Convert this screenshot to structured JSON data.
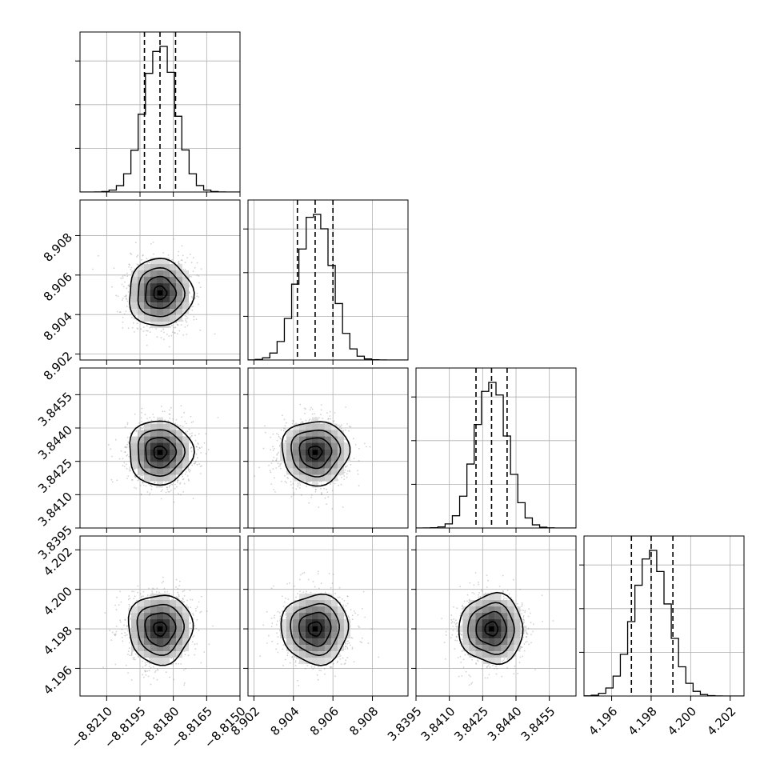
{
  "chart_data": {
    "type": "corner",
    "parameters": 4,
    "grid": true,
    "axes": [
      {
        "range": [
          -8.8222,
          -8.815
        ],
        "ticks": [
          -8.821,
          -8.8195,
          -8.818,
          -8.8165,
          -8.815
        ],
        "tick_labels": [
          "−8.8210",
          "−8.8195",
          "−8.8180",
          "−8.8165",
          "−8.8150"
        ],
        "quantiles": [
          -8.8193,
          -8.8186,
          -8.8179
        ],
        "median": -8.8186,
        "sigma": 0.00072
      },
      {
        "range": [
          8.9017,
          8.9098
        ],
        "ticks": [
          8.902,
          8.904,
          8.906,
          8.908
        ],
        "tick_labels": [
          "8.902",
          "8.904",
          "8.906",
          "8.908"
        ],
        "quantiles": [
          8.9042,
          8.9051,
          8.906
        ],
        "median": 8.9051,
        "sigma": 0.00085
      },
      {
        "range": [
          3.8395,
          3.8467
        ],
        "ticks": [
          3.8395,
          3.841,
          3.8425,
          3.844,
          3.8455
        ],
        "tick_labels": [
          "3.8395",
          "3.8410",
          "3.8425",
          "3.8440",
          "3.8455"
        ],
        "quantiles": [
          3.8422,
          3.8429,
          3.8436
        ],
        "median": 3.8429,
        "sigma": 0.00072
      },
      {
        "range": [
          4.1946,
          4.2027
        ],
        "ticks": [
          4.196,
          4.198,
          4.2,
          4.202
        ],
        "tick_labels": [
          "4.196",
          "4.198",
          "4.200",
          "4.202"
        ],
        "quantiles": [
          4.197,
          4.198,
          4.1991
        ],
        "median": 4.198,
        "sigma": 0.00088
      }
    ],
    "colors": {
      "axis": "#000000",
      "grid": "#b0b0b0",
      "contour": "#000000",
      "points": "#7a7a7a",
      "quantile_line": "#000000"
    }
  }
}
